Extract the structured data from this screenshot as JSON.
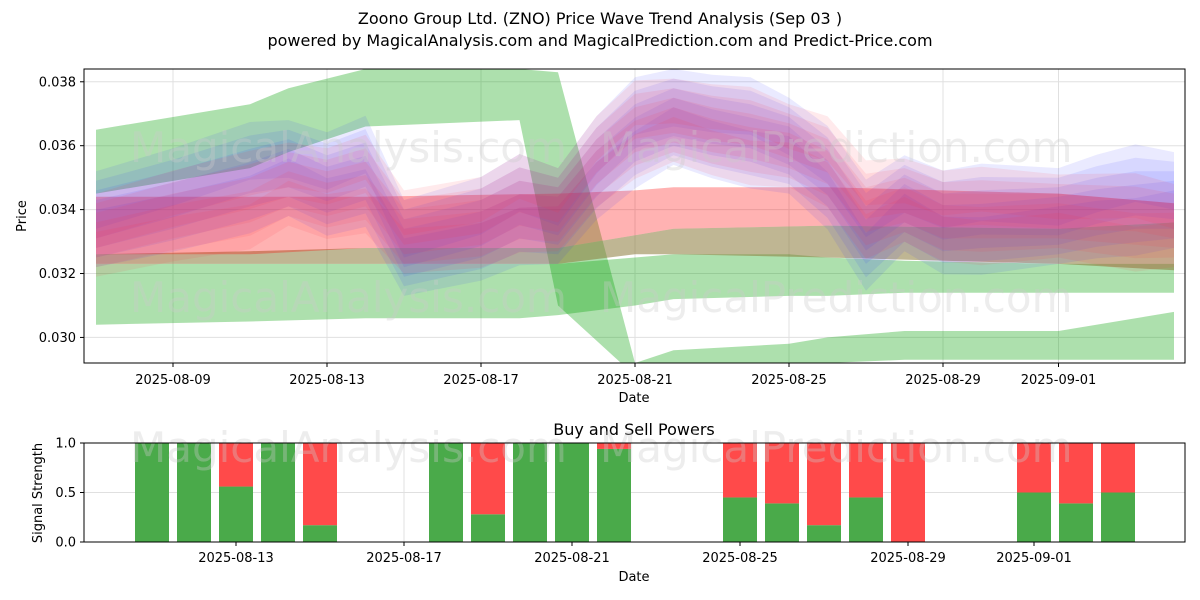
{
  "header": {
    "title": "Zoono Group Ltd. (ZNO) Price Wave Trend Analysis (Sep 03 )",
    "subtitle": "powered by MagicalAnalysis.com and MagicalPrediction.com and Predict-Price.com"
  },
  "watermarks": [
    "MagicalAnalysis.com",
    "MagicalPrediction.com"
  ],
  "chart_data": [
    {
      "type": "area",
      "title": "",
      "xlabel": "Date",
      "ylabel": "Price",
      "x_ticks": [
        "2025-08-09",
        "2025-08-13",
        "2025-08-17",
        "2025-08-21",
        "2025-08-25",
        "2025-08-29",
        "2025-09-01"
      ],
      "y_ticks": [
        "0.030",
        "0.032",
        "0.034",
        "0.036",
        "0.038"
      ],
      "ylim": [
        0.0292,
        0.0384
      ],
      "grid": true,
      "series": [
        {
          "color": "#00a000",
          "kind": "upper-band",
          "x": [
            "2025-08-07",
            "2025-08-11",
            "2025-08-12",
            "2025-08-14",
            "2025-08-18",
            "2025-08-19",
            "2025-08-21",
            "2025-08-22",
            "2025-08-25",
            "2025-08-26",
            "2025-08-28",
            "2025-09-01",
            "2025-09-04"
          ],
          "top": [
            0.0365,
            0.0373,
            0.0378,
            0.0384,
            0.0384,
            0.0383,
            0.0292,
            0.0296,
            0.0298,
            0.03,
            0.0302,
            0.0302,
            0.0308
          ],
          "bottom": [
            0.0345,
            0.0353,
            0.0358,
            0.0366,
            0.0368,
            0.031,
            0.0288,
            0.0288,
            0.029,
            0.0292,
            0.0293,
            0.0293,
            0.0293
          ]
        },
        {
          "color": "#00a000",
          "kind": "lower-band",
          "x": [
            "2025-08-07",
            "2025-08-11",
            "2025-08-14",
            "2025-08-18",
            "2025-08-19",
            "2025-08-21",
            "2025-08-22",
            "2025-08-25",
            "2025-08-26",
            "2025-08-28",
            "2025-09-01",
            "2025-09-04"
          ],
          "top": [
            0.0323,
            0.0323,
            0.0323,
            0.0323,
            0.0323,
            0.0325,
            0.0326,
            0.0326,
            0.0325,
            0.0324,
            0.0323,
            0.0323
          ],
          "bottom": [
            0.0304,
            0.0305,
            0.0306,
            0.0306,
            0.0307,
            0.031,
            0.0312,
            0.0313,
            0.0313,
            0.0314,
            0.0314,
            0.0314
          ]
        },
        {
          "color": "#8b7a3a",
          "kind": "middle-band",
          "x": [
            "2025-08-07",
            "2025-08-11",
            "2025-08-14",
            "2025-08-19",
            "2025-08-21",
            "2025-08-22",
            "2025-08-26",
            "2025-09-01",
            "2025-09-04"
          ],
          "top": [
            0.0326,
            0.0327,
            0.0328,
            0.0328,
            0.0332,
            0.0334,
            0.0335,
            0.0334,
            0.0336
          ],
          "bottom": [
            0.0323,
            0.0323,
            0.0323,
            0.0323,
            0.0326,
            0.0326,
            0.0325,
            0.0323,
            0.0321
          ]
        },
        {
          "color": "#ff0000",
          "kind": "price-band",
          "x": [
            "2025-08-07",
            "2025-08-11",
            "2025-08-14",
            "2025-08-19",
            "2025-08-21",
            "2025-08-22",
            "2025-08-26",
            "2025-09-01",
            "2025-09-04"
          ],
          "top": [
            0.0344,
            0.0344,
            0.0344,
            0.0345,
            0.0346,
            0.0347,
            0.0347,
            0.0345,
            0.0342
          ],
          "bottom": [
            0.0326,
            0.0326,
            0.0328,
            0.0328,
            0.0332,
            0.0334,
            0.0335,
            0.0334,
            0.0336
          ]
        },
        {
          "color": "#3333ff",
          "kind": "wave",
          "x": [
            "2025-08-07",
            "2025-08-09",
            "2025-08-11",
            "2025-08-12",
            "2025-08-13",
            "2025-08-14",
            "2025-08-15",
            "2025-08-17",
            "2025-08-18",
            "2025-08-19",
            "2025-08-20",
            "2025-08-21",
            "2025-08-22",
            "2025-08-23",
            "2025-08-24",
            "2025-08-25",
            "2025-08-26",
            "2025-08-27",
            "2025-08-28",
            "2025-08-29",
            "2025-08-30",
            "2025-09-01",
            "2025-09-02",
            "2025-09-03",
            "2025-09-04"
          ],
          "center": [
            0.0337,
            0.0343,
            0.035,
            0.0353,
            0.0348,
            0.0352,
            0.0328,
            0.0334,
            0.034,
            0.0338,
            0.0353,
            0.0364,
            0.0369,
            0.0366,
            0.0364,
            0.036,
            0.035,
            0.0332,
            0.0342,
            0.0336,
            0.0337,
            0.0338,
            0.0341,
            0.0343,
            0.0343
          ],
          "half_width": 0.0009
        },
        {
          "color": "#ff3344",
          "kind": "wave",
          "x": [
            "2025-08-07",
            "2025-08-09",
            "2025-08-11",
            "2025-08-12",
            "2025-08-13",
            "2025-08-14",
            "2025-08-15",
            "2025-08-17",
            "2025-08-18",
            "2025-08-19",
            "2025-08-20",
            "2025-08-21",
            "2025-08-22",
            "2025-08-23",
            "2025-08-24",
            "2025-08-25",
            "2025-08-26",
            "2025-08-27",
            "2025-08-28",
            "2025-08-29",
            "2025-08-30",
            "2025-09-01",
            "2025-09-02",
            "2025-09-03",
            "2025-09-04"
          ],
          "center": [
            0.0332,
            0.0338,
            0.0343,
            0.0348,
            0.0345,
            0.0348,
            0.0333,
            0.0336,
            0.0342,
            0.034,
            0.0355,
            0.0365,
            0.0368,
            0.0365,
            0.0363,
            0.036,
            0.0355,
            0.034,
            0.0343,
            0.0338,
            0.0338,
            0.0338,
            0.0337,
            0.0336,
            0.0335
          ],
          "half_width": 0.0007
        }
      ]
    },
    {
      "type": "bar",
      "title": "Buy and Sell Powers",
      "xlabel": "Date",
      "ylabel": "Signal Strength",
      "ylim": [
        0,
        1
      ],
      "y_ticks": [
        "0.0",
        "0.5",
        "1.0"
      ],
      "x_ticks": [
        "2025-08-13",
        "2025-08-17",
        "2025-08-21",
        "2025-08-25",
        "2025-08-29",
        "2025-09-01"
      ],
      "grid": true,
      "colors": {
        "buy": "#4aaa4a",
        "sell": "#ff4a4a"
      },
      "dates": [
        "2025-08-11",
        "2025-08-12",
        "2025-08-13",
        "2025-08-14",
        "2025-08-15",
        "2025-08-18",
        "2025-08-19",
        "2025-08-20",
        "2025-08-21",
        "2025-08-22",
        "2025-08-25",
        "2025-08-26",
        "2025-08-27",
        "2025-08-28",
        "2025-08-29",
        "2025-09-01",
        "2025-09-02",
        "2025-09-03"
      ],
      "buy": [
        1.0,
        1.0,
        0.56,
        1.0,
        0.17,
        1.0,
        0.28,
        1.0,
        1.0,
        0.94,
        0.45,
        0.39,
        0.17,
        0.45,
        0.0,
        0.5,
        0.39,
        0.5
      ],
      "sell": [
        0.0,
        0.0,
        0.44,
        0.0,
        0.83,
        0.0,
        0.72,
        0.0,
        0.0,
        0.06,
        0.55,
        0.61,
        0.83,
        0.55,
        1.0,
        0.5,
        0.61,
        0.5
      ]
    }
  ]
}
